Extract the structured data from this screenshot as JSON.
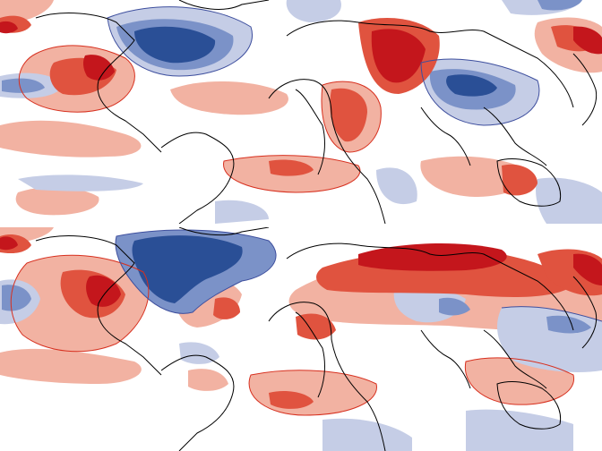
{
  "figure": {
    "panels": [
      {
        "id": "top",
        "map_type": "global temperature anomaly map (filled contours)"
      },
      {
        "id": "bottom",
        "map_type": "global temperature anomaly map (filled contours)"
      }
    ]
  },
  "colors": {
    "warm_strong": "#c4161c",
    "warm_medium": "#e0533f",
    "warm_light": "#f2b2a2",
    "cool_light": "#c5cde6",
    "cool_medium": "#7b92c8",
    "cool_strong": "#2a4f96",
    "coastline": "#000000",
    "warm_contour": "#d7301f",
    "cool_contour": "#3e4f9e",
    "background": "#ffffff"
  }
}
